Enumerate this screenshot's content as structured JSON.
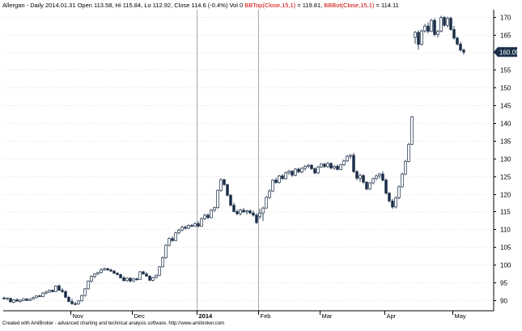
{
  "header": {
    "symbol": "Allergan",
    "info": " - Daily 2014.01.31 Open 113.58, Hi 115.84, Lo 112.92, Close 114.6 (-0.4%) Vol 0 ",
    "bbtop_label": "BBTop(Close,15,1)",
    "bbtop_value": " = 119.81, ",
    "bbbot_label": "BBBot(Close,15,1)",
    "bbbot_value": " = 114.11"
  },
  "footer": "Created with AmiBroker - advanced charting and technical analysis software. http://www.amibroker.com",
  "colors": {
    "up": "#ffffff",
    "down": "#1b2e48",
    "outline": "#1b2e48",
    "grid": "#c8c8c8",
    "last_bg": "#1b2e48",
    "bb_label": "#d00000"
  },
  "chart_data": {
    "type": "candlestick",
    "x_unit": "trading-day",
    "yaxis_side": "right",
    "ylim": [
      87,
      172
    ],
    "yticks": [
      90,
      95,
      100,
      105,
      110,
      115,
      120,
      125,
      130,
      135,
      140,
      145,
      150,
      155,
      160,
      165,
      170
    ],
    "last_value": "160.05",
    "last_price": 160.05,
    "x_labels": [
      {
        "label": "Nov",
        "day": 21
      },
      {
        "label": "Dec",
        "day": 40
      },
      {
        "label": "2014",
        "day": 60
      },
      {
        "label": "Feb",
        "day": 79
      },
      {
        "label": "Mar",
        "day": 98
      },
      {
        "label": "Apr",
        "day": 118
      },
      {
        "label": "May",
        "day": 139
      }
    ],
    "vlines": [
      60,
      79
    ],
    "candles": [
      {
        "day": 0,
        "o": 90.6,
        "h": 91.0,
        "l": 90.2,
        "c": 90.5
      },
      {
        "day": 1,
        "o": 90.4,
        "h": 90.8,
        "l": 90.0,
        "c": 90.6
      },
      {
        "day": 2,
        "o": 90.5,
        "h": 90.7,
        "l": 89.4,
        "c": 89.5
      },
      {
        "day": 3,
        "o": 89.4,
        "h": 90.3,
        "l": 89.1,
        "c": 90.1
      },
      {
        "day": 4,
        "o": 90.1,
        "h": 90.5,
        "l": 89.6,
        "c": 89.7
      },
      {
        "day": 5,
        "o": 89.6,
        "h": 90.2,
        "l": 89.3,
        "c": 90.0
      },
      {
        "day": 6,
        "o": 89.9,
        "h": 90.6,
        "l": 89.7,
        "c": 90.4
      },
      {
        "day": 7,
        "o": 90.3,
        "h": 90.6,
        "l": 89.8,
        "c": 89.9
      },
      {
        "day": 8,
        "o": 89.9,
        "h": 90.5,
        "l": 89.7,
        "c": 90.3
      },
      {
        "day": 9,
        "o": 90.3,
        "h": 91.0,
        "l": 90.1,
        "c": 90.7
      },
      {
        "day": 10,
        "o": 90.7,
        "h": 91.3,
        "l": 90.5,
        "c": 91.2
      },
      {
        "day": 11,
        "o": 91.2,
        "h": 91.6,
        "l": 90.9,
        "c": 91.0
      },
      {
        "day": 12,
        "o": 91.0,
        "h": 92.2,
        "l": 90.8,
        "c": 92.0
      },
      {
        "day": 13,
        "o": 92.0,
        "h": 92.6,
        "l": 91.6,
        "c": 92.3
      },
      {
        "day": 14,
        "o": 92.3,
        "h": 93.0,
        "l": 92.0,
        "c": 92.8
      },
      {
        "day": 15,
        "o": 92.8,
        "h": 93.0,
        "l": 92.2,
        "c": 92.4
      },
      {
        "day": 16,
        "o": 92.4,
        "h": 94.2,
        "l": 92.3,
        "c": 94.0
      },
      {
        "day": 17,
        "o": 94.0,
        "h": 94.5,
        "l": 92.6,
        "c": 92.8
      },
      {
        "day": 18,
        "o": 92.8,
        "h": 93.4,
        "l": 92.0,
        "c": 92.4
      },
      {
        "day": 19,
        "o": 92.4,
        "h": 92.8,
        "l": 90.6,
        "c": 90.8
      },
      {
        "day": 20,
        "o": 90.8,
        "h": 91.2,
        "l": 89.4,
        "c": 89.6
      },
      {
        "day": 21,
        "o": 89.6,
        "h": 90.4,
        "l": 88.7,
        "c": 89.0
      },
      {
        "day": 22,
        "o": 89.0,
        "h": 89.5,
        "l": 88.6,
        "c": 88.9
      },
      {
        "day": 23,
        "o": 88.9,
        "h": 90.0,
        "l": 88.7,
        "c": 89.8
      },
      {
        "day": 24,
        "o": 89.8,
        "h": 91.6,
        "l": 89.6,
        "c": 91.3
      },
      {
        "day": 25,
        "o": 91.3,
        "h": 93.4,
        "l": 91.0,
        "c": 93.2
      },
      {
        "day": 26,
        "o": 93.2,
        "h": 95.6,
        "l": 93.0,
        "c": 95.4
      },
      {
        "day": 27,
        "o": 95.4,
        "h": 97.0,
        "l": 95.0,
        "c": 96.7
      },
      {
        "day": 28,
        "o": 96.7,
        "h": 97.6,
        "l": 96.2,
        "c": 97.4
      },
      {
        "day": 29,
        "o": 97.4,
        "h": 98.0,
        "l": 97.1,
        "c": 97.8
      },
      {
        "day": 30,
        "o": 97.8,
        "h": 99.0,
        "l": 97.5,
        "c": 98.6
      },
      {
        "day": 31,
        "o": 98.6,
        "h": 99.2,
        "l": 98.3,
        "c": 98.9
      },
      {
        "day": 32,
        "o": 98.9,
        "h": 99.1,
        "l": 98.3,
        "c": 98.5
      },
      {
        "day": 33,
        "o": 98.5,
        "h": 98.9,
        "l": 97.9,
        "c": 98.2
      },
      {
        "day": 34,
        "o": 98.2,
        "h": 98.5,
        "l": 97.4,
        "c": 97.6
      },
      {
        "day": 35,
        "o": 97.6,
        "h": 97.9,
        "l": 97.0,
        "c": 97.2
      },
      {
        "day": 36,
        "o": 97.2,
        "h": 97.5,
        "l": 96.1,
        "c": 96.3
      },
      {
        "day": 37,
        "o": 96.3,
        "h": 96.8,
        "l": 95.3,
        "c": 95.5
      },
      {
        "day": 38,
        "o": 95.5,
        "h": 96.4,
        "l": 95.2,
        "c": 96.2
      },
      {
        "day": 39,
        "o": 96.2,
        "h": 96.5,
        "l": 95.0,
        "c": 95.4
      },
      {
        "day": 40,
        "o": 95.4,
        "h": 96.3,
        "l": 95.1,
        "c": 96.0
      },
      {
        "day": 41,
        "o": 96.0,
        "h": 96.4,
        "l": 95.5,
        "c": 95.8
      },
      {
        "day": 42,
        "o": 95.8,
        "h": 98.2,
        "l": 95.7,
        "c": 98.0
      },
      {
        "day": 43,
        "o": 98.0,
        "h": 98.3,
        "l": 97.2,
        "c": 97.4
      },
      {
        "day": 44,
        "o": 97.4,
        "h": 97.9,
        "l": 96.6,
        "c": 96.8
      },
      {
        "day": 45,
        "o": 96.8,
        "h": 97.0,
        "l": 95.4,
        "c": 95.6
      },
      {
        "day": 46,
        "o": 95.6,
        "h": 96.6,
        "l": 95.3,
        "c": 96.4
      },
      {
        "day": 47,
        "o": 96.4,
        "h": 97.3,
        "l": 96.1,
        "c": 97.0
      },
      {
        "day": 48,
        "o": 97.0,
        "h": 99.6,
        "l": 96.8,
        "c": 99.4
      },
      {
        "day": 49,
        "o": 99.4,
        "h": 102.4,
        "l": 99.2,
        "c": 102.0
      },
      {
        "day": 50,
        "o": 102.0,
        "h": 105.8,
        "l": 101.7,
        "c": 105.5
      },
      {
        "day": 51,
        "o": 105.5,
        "h": 107.7,
        "l": 105.2,
        "c": 107.4
      },
      {
        "day": 52,
        "o": 107.4,
        "h": 108.0,
        "l": 106.5,
        "c": 106.8
      },
      {
        "day": 53,
        "o": 106.8,
        "h": 109.3,
        "l": 106.7,
        "c": 109.0
      },
      {
        "day": 54,
        "o": 109.0,
        "h": 110.2,
        "l": 108.6,
        "c": 109.8
      },
      {
        "day": 55,
        "o": 109.8,
        "h": 111.0,
        "l": 109.4,
        "c": 110.6
      },
      {
        "day": 56,
        "o": 110.6,
        "h": 111.1,
        "l": 109.9,
        "c": 110.3
      },
      {
        "day": 57,
        "o": 110.3,
        "h": 111.4,
        "l": 110.1,
        "c": 111.1
      },
      {
        "day": 58,
        "o": 111.1,
        "h": 111.5,
        "l": 110.6,
        "c": 110.9
      },
      {
        "day": 59,
        "o": 110.9,
        "h": 112.0,
        "l": 110.7,
        "c": 111.6
      },
      {
        "day": 60,
        "o": 111.6,
        "h": 112.3,
        "l": 110.6,
        "c": 110.9
      },
      {
        "day": 61,
        "o": 110.9,
        "h": 113.4,
        "l": 110.7,
        "c": 113.0
      },
      {
        "day": 62,
        "o": 113.0,
        "h": 114.4,
        "l": 112.6,
        "c": 114.0
      },
      {
        "day": 63,
        "o": 114.0,
        "h": 114.5,
        "l": 112.9,
        "c": 113.3
      },
      {
        "day": 64,
        "o": 113.3,
        "h": 115.7,
        "l": 113.1,
        "c": 115.4
      },
      {
        "day": 65,
        "o": 115.4,
        "h": 116.4,
        "l": 114.9,
        "c": 116.1
      },
      {
        "day": 66,
        "o": 116.1,
        "h": 121.3,
        "l": 115.8,
        "c": 121.0
      },
      {
        "day": 67,
        "o": 121.0,
        "h": 124.4,
        "l": 120.6,
        "c": 124.0
      },
      {
        "day": 68,
        "o": 124.0,
        "h": 124.3,
        "l": 122.3,
        "c": 122.6
      },
      {
        "day": 69,
        "o": 122.6,
        "h": 122.9,
        "l": 119.3,
        "c": 119.6
      },
      {
        "day": 70,
        "o": 119.6,
        "h": 120.0,
        "l": 116.5,
        "c": 116.8
      },
      {
        "day": 71,
        "o": 116.8,
        "h": 117.5,
        "l": 114.8,
        "c": 115.0
      },
      {
        "day": 72,
        "o": 115.0,
        "h": 115.6,
        "l": 114.0,
        "c": 114.4
      },
      {
        "day": 73,
        "o": 114.4,
        "h": 115.8,
        "l": 113.9,
        "c": 115.4
      },
      {
        "day": 74,
        "o": 115.4,
        "h": 116.0,
        "l": 114.6,
        "c": 114.9
      },
      {
        "day": 75,
        "o": 114.9,
        "h": 115.5,
        "l": 114.2,
        "c": 115.2
      },
      {
        "day": 76,
        "o": 115.2,
        "h": 115.6,
        "l": 114.3,
        "c": 114.6
      },
      {
        "day": 77,
        "o": 114.6,
        "h": 115.3,
        "l": 113.6,
        "c": 114.0
      },
      {
        "day": 78,
        "o": 114.0,
        "h": 114.6,
        "l": 111.5,
        "c": 111.9
      },
      {
        "day": 79,
        "o": 113.58,
        "h": 115.84,
        "l": 112.92,
        "c": 114.6
      },
      {
        "day": 80,
        "o": 114.6,
        "h": 116.4,
        "l": 112.3,
        "c": 116.0
      },
      {
        "day": 81,
        "o": 116.0,
        "h": 119.4,
        "l": 115.8,
        "c": 119.0
      },
      {
        "day": 82,
        "o": 119.0,
        "h": 121.3,
        "l": 118.6,
        "c": 120.8
      },
      {
        "day": 83,
        "o": 120.8,
        "h": 124.2,
        "l": 120.5,
        "c": 123.9
      },
      {
        "day": 84,
        "o": 123.9,
        "h": 124.6,
        "l": 122.9,
        "c": 123.2
      },
      {
        "day": 85,
        "o": 123.2,
        "h": 125.4,
        "l": 122.9,
        "c": 125.1
      },
      {
        "day": 86,
        "o": 125.1,
        "h": 125.6,
        "l": 123.9,
        "c": 124.3
      },
      {
        "day": 87,
        "o": 124.3,
        "h": 126.3,
        "l": 124.0,
        "c": 126.0
      },
      {
        "day": 88,
        "o": 126.0,
        "h": 126.8,
        "l": 125.4,
        "c": 126.4
      },
      {
        "day": 89,
        "o": 126.4,
        "h": 126.7,
        "l": 124.8,
        "c": 125.3
      },
      {
        "day": 90,
        "o": 125.3,
        "h": 127.3,
        "l": 125.0,
        "c": 127.0
      },
      {
        "day": 91,
        "o": 127.0,
        "h": 127.4,
        "l": 125.9,
        "c": 126.2
      },
      {
        "day": 92,
        "o": 126.2,
        "h": 127.6,
        "l": 125.8,
        "c": 127.2
      },
      {
        "day": 93,
        "o": 127.2,
        "h": 128.1,
        "l": 126.6,
        "c": 127.8
      },
      {
        "day": 94,
        "o": 127.8,
        "h": 128.5,
        "l": 127.3,
        "c": 128.1
      },
      {
        "day": 95,
        "o": 128.1,
        "h": 128.4,
        "l": 126.8,
        "c": 127.1
      },
      {
        "day": 96,
        "o": 127.1,
        "h": 127.5,
        "l": 125.6,
        "c": 125.9
      },
      {
        "day": 97,
        "o": 125.9,
        "h": 127.9,
        "l": 125.6,
        "c": 127.6
      },
      {
        "day": 98,
        "o": 127.6,
        "h": 128.7,
        "l": 127.3,
        "c": 128.4
      },
      {
        "day": 99,
        "o": 128.4,
        "h": 128.8,
        "l": 127.4,
        "c": 127.7
      },
      {
        "day": 100,
        "o": 127.7,
        "h": 129.0,
        "l": 127.3,
        "c": 128.6
      },
      {
        "day": 101,
        "o": 128.6,
        "h": 128.9,
        "l": 127.0,
        "c": 127.3
      },
      {
        "day": 102,
        "o": 127.3,
        "h": 128.1,
        "l": 126.8,
        "c": 127.8
      },
      {
        "day": 103,
        "o": 127.8,
        "h": 128.3,
        "l": 126.6,
        "c": 126.9
      },
      {
        "day": 104,
        "o": 126.9,
        "h": 128.5,
        "l": 126.7,
        "c": 128.2
      },
      {
        "day": 105,
        "o": 128.2,
        "h": 129.7,
        "l": 127.9,
        "c": 129.3
      },
      {
        "day": 106,
        "o": 129.3,
        "h": 131.0,
        "l": 129.0,
        "c": 130.6
      },
      {
        "day": 107,
        "o": 130.6,
        "h": 131.2,
        "l": 129.9,
        "c": 130.9
      },
      {
        "day": 108,
        "o": 130.9,
        "h": 131.6,
        "l": 125.9,
        "c": 126.3
      },
      {
        "day": 109,
        "o": 126.3,
        "h": 126.7,
        "l": 123.9,
        "c": 124.4
      },
      {
        "day": 110,
        "o": 124.4,
        "h": 125.7,
        "l": 123.4,
        "c": 125.2
      },
      {
        "day": 111,
        "o": 125.2,
        "h": 125.5,
        "l": 122.9,
        "c": 123.3
      },
      {
        "day": 112,
        "o": 123.3,
        "h": 123.6,
        "l": 121.0,
        "c": 121.4
      },
      {
        "day": 113,
        "o": 121.4,
        "h": 123.4,
        "l": 121.1,
        "c": 123.1
      },
      {
        "day": 114,
        "o": 123.1,
        "h": 124.6,
        "l": 122.7,
        "c": 124.3
      },
      {
        "day": 115,
        "o": 124.3,
        "h": 125.5,
        "l": 123.9,
        "c": 125.1
      },
      {
        "day": 116,
        "o": 125.1,
        "h": 126.0,
        "l": 124.3,
        "c": 125.6
      },
      {
        "day": 117,
        "o": 125.6,
        "h": 126.4,
        "l": 123.5,
        "c": 123.9
      },
      {
        "day": 118,
        "o": 123.9,
        "h": 124.4,
        "l": 119.8,
        "c": 120.2
      },
      {
        "day": 119,
        "o": 120.2,
        "h": 120.5,
        "l": 117.6,
        "c": 118.0
      },
      {
        "day": 120,
        "o": 118.0,
        "h": 118.6,
        "l": 115.8,
        "c": 116.3
      },
      {
        "day": 121,
        "o": 116.3,
        "h": 119.4,
        "l": 115.9,
        "c": 118.9
      },
      {
        "day": 122,
        "o": 118.9,
        "h": 122.4,
        "l": 118.5,
        "c": 122.0
      },
      {
        "day": 123,
        "o": 122.0,
        "h": 126.0,
        "l": 121.8,
        "c": 125.6
      },
      {
        "day": 124,
        "o": 125.6,
        "h": 129.6,
        "l": 125.3,
        "c": 129.2
      },
      {
        "day": 125,
        "o": 129.2,
        "h": 134.4,
        "l": 128.9,
        "c": 134.0
      },
      {
        "day": 126,
        "o": 134.0,
        "h": 142.0,
        "l": 133.8,
        "c": 141.8
      },
      {
        "day": 127,
        "o": 164.2,
        "h": 166.0,
        "l": 162.4,
        "c": 165.6
      },
      {
        "day": 128,
        "o": 165.6,
        "h": 166.2,
        "l": 160.7,
        "c": 162.2
      },
      {
        "day": 129,
        "o": 162.2,
        "h": 166.4,
        "l": 161.9,
        "c": 166.0
      },
      {
        "day": 130,
        "o": 166.0,
        "h": 168.0,
        "l": 165.5,
        "c": 167.4
      },
      {
        "day": 131,
        "o": 167.4,
        "h": 168.4,
        "l": 165.3,
        "c": 165.9
      },
      {
        "day": 132,
        "o": 165.9,
        "h": 169.4,
        "l": 165.7,
        "c": 169.0
      },
      {
        "day": 133,
        "o": 169.0,
        "h": 169.6,
        "l": 164.5,
        "c": 165.0
      },
      {
        "day": 134,
        "o": 165.0,
        "h": 166.3,
        "l": 164.2,
        "c": 165.9
      },
      {
        "day": 135,
        "o": 165.9,
        "h": 170.3,
        "l": 165.6,
        "c": 169.8
      },
      {
        "day": 136,
        "o": 169.8,
        "h": 170.2,
        "l": 167.2,
        "c": 167.6
      },
      {
        "day": 137,
        "o": 167.6,
        "h": 170.0,
        "l": 167.0,
        "c": 169.6
      },
      {
        "day": 138,
        "o": 169.6,
        "h": 170.0,
        "l": 166.1,
        "c": 166.4
      },
      {
        "day": 139,
        "o": 166.4,
        "h": 167.4,
        "l": 163.6,
        "c": 164.0
      },
      {
        "day": 140,
        "o": 164.0,
        "h": 164.4,
        "l": 161.9,
        "c": 162.3
      },
      {
        "day": 141,
        "o": 162.3,
        "h": 163.0,
        "l": 160.2,
        "c": 160.6
      },
      {
        "day": 142,
        "o": 160.6,
        "h": 161.0,
        "l": 159.3,
        "c": 160.05
      }
    ]
  }
}
